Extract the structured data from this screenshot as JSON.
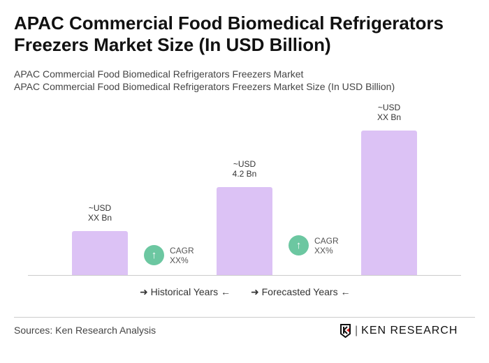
{
  "header": {
    "title": "APAC Commercial Food Biomedical Refrigerators Freezers Market Size (In USD Billion)",
    "subtitle1": "APAC Commercial Food Biomedical Refrigerators Freezers Market",
    "subtitle2": "APAC Commercial Food Biomedical Refrigerators Freezers Market Size (In USD Billion)"
  },
  "chart_data": {
    "type": "bar",
    "values": [
      2.1,
      4.2,
      6.9
    ],
    "data_labels": [
      {
        "l1": "~USD",
        "l2": "XX Bn"
      },
      {
        "l1": "~USD",
        "l2": "4.2 Bn"
      },
      {
        "l1": "~USD",
        "l2": "XX Bn"
      }
    ],
    "bar_color": "#dcc2f5",
    "cagr": [
      {
        "l1": "CAGR",
        "l2": "XX%"
      },
      {
        "l1": "CAGR",
        "l2": "XX%"
      }
    ],
    "cagr_color": "#6cc7a1",
    "legend": [
      "Historical Years",
      "Forecasted Years"
    ],
    "grid": false
  },
  "footer": {
    "source": "Sources: Ken Research Analysis",
    "logo": "KEN RESEARCH"
  }
}
